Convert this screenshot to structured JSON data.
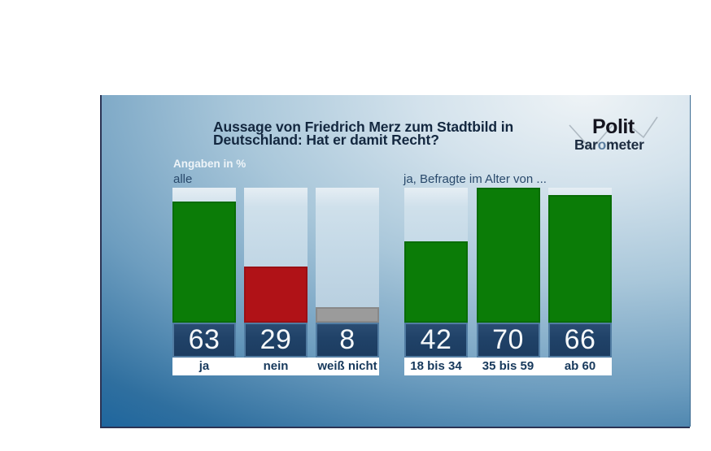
{
  "panel": {
    "title_line1": "Aussage von Friedrich Merz zum Stadtbild in",
    "title_line2": "Deutschland: Hat er damit Recht?",
    "unit_label": "Angaben in %",
    "left_group_label": "alle",
    "right_group_label": "ja, Befragte im Alter von ..."
  },
  "logo": {
    "top": "Polit",
    "bottom_pre": "Bar",
    "bottom_o": "o",
    "bottom_post": "meter"
  },
  "colors": {
    "green": "#0b7c07",
    "red": "#b01217",
    "gray": "#9b9b9b",
    "value_box_navy": "#204268",
    "label_text_navy": "#17395c",
    "panel_deep_blue": "#14609d",
    "track_light_blue": "#c3d8e6"
  },
  "chart_data": [
    {
      "type": "bar",
      "title": "alle",
      "unit": "Angaben in %",
      "categories": [
        "ja",
        "nein",
        "weiß nicht"
      ],
      "values": [
        63,
        29,
        8
      ],
      "bar_colors": [
        "#0b7c07",
        "#b01217",
        "#9b9b9b"
      ],
      "ylim": [
        0,
        70
      ],
      "value_labels": [
        63,
        29,
        8
      ],
      "legend": "none",
      "grid": false
    },
    {
      "type": "bar",
      "title": "ja, Befragte im Alter von ...",
      "unit": "Angaben in %",
      "categories": [
        "18 bis 34",
        "35 bis 59",
        "ab 60"
      ],
      "values": [
        42,
        70,
        66
      ],
      "bar_colors": [
        "#0b7c07",
        "#0b7c07",
        "#0b7c07"
      ],
      "ylim": [
        0,
        70
      ],
      "value_labels": [
        42,
        70,
        66
      ],
      "legend": "none",
      "grid": false
    }
  ]
}
